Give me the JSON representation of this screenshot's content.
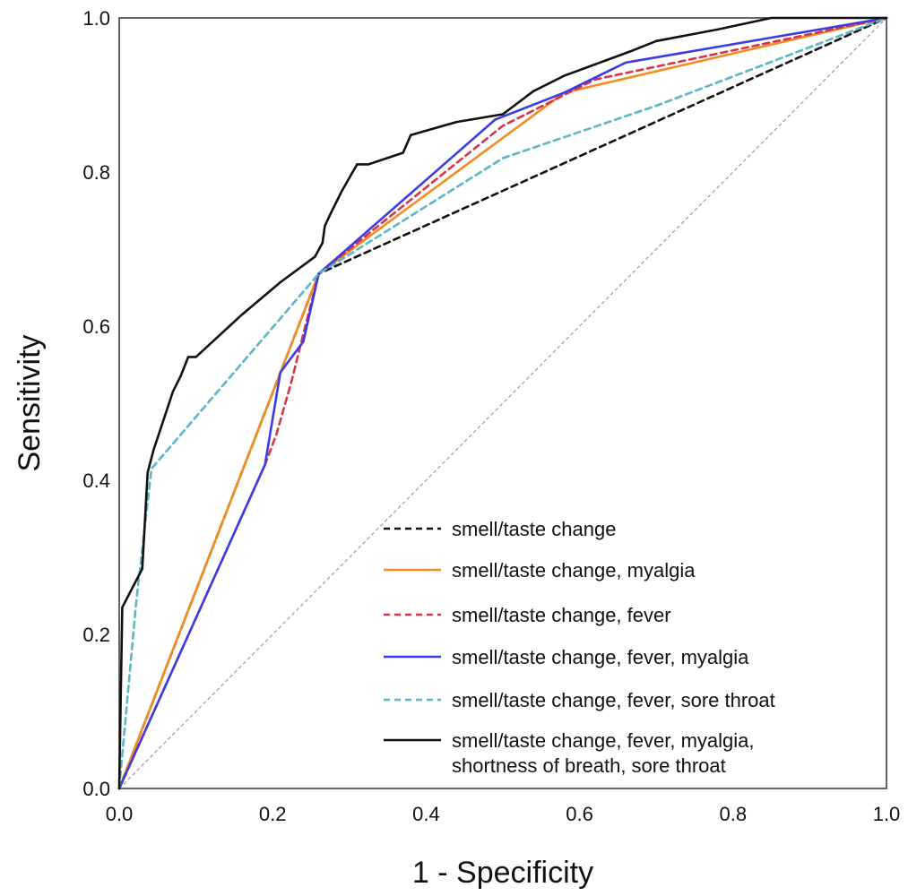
{
  "chart_data": {
    "type": "line",
    "title": "",
    "xlabel": "1 - Specificity",
    "ylabel": "Sensitivity",
    "xlim": [
      0.0,
      1.0
    ],
    "ylim": [
      0.0,
      1.0
    ],
    "x_ticks": [
      "0.0",
      "0.2",
      "0.4",
      "0.6",
      "0.8",
      "1.0"
    ],
    "y_ticks": [
      "0.0",
      "0.2",
      "0.4",
      "0.6",
      "0.8",
      "1.0"
    ],
    "grid": false,
    "legend_position": "bottom-right",
    "reference_line": {
      "x": [
        0,
        1
      ],
      "y": [
        0,
        1
      ],
      "color": "#999999",
      "dash": "dashed"
    },
    "series": [
      {
        "name": "smell/taste change",
        "color": "#111111",
        "dash": "dashed",
        "x": [
          0.0,
          0.26,
          1.0
        ],
        "y": [
          0.0,
          0.668,
          1.0
        ]
      },
      {
        "name": "smell/taste change, myalgia",
        "color": "#f28c1e",
        "dash": "solid",
        "x": [
          0.0,
          0.26,
          0.58,
          1.0
        ],
        "y": [
          0.0,
          0.668,
          0.903,
          1.0
        ]
      },
      {
        "name": "smell/taste change, fever",
        "color": "#d9334a",
        "dash": "dashed",
        "x": [
          0.0,
          0.19,
          0.205,
          0.225,
          0.24,
          0.26,
          0.5,
          0.62,
          1.0
        ],
        "y": [
          0.0,
          0.42,
          0.46,
          0.53,
          0.59,
          0.668,
          0.86,
          0.92,
          1.0
        ]
      },
      {
        "name": "smell/taste change, fever, myalgia",
        "color": "#3b3be6",
        "dash": "solid",
        "x": [
          0.0,
          0.19,
          0.21,
          0.24,
          0.26,
          0.49,
          0.58,
          0.66,
          1.0
        ],
        "y": [
          0.0,
          0.42,
          0.54,
          0.58,
          0.668,
          0.868,
          0.903,
          0.942,
          1.0
        ]
      },
      {
        "name": "smell/taste change, fever, sore throat",
        "color": "#5ab6c8",
        "dash": "dashed",
        "x": [
          0.0,
          0.022,
          0.042,
          0.26,
          0.5,
          0.7,
          1.0
        ],
        "y": [
          0.0,
          0.24,
          0.415,
          0.668,
          0.818,
          0.886,
          1.0
        ]
      },
      {
        "name": "smell/taste change, fever, myalgia, shortness of breath, sore throat",
        "color": "#111111",
        "dash": "solid",
        "x": [
          0.0,
          0.004,
          0.03,
          0.037,
          0.045,
          0.055,
          0.07,
          0.08,
          0.09,
          0.1,
          0.16,
          0.21,
          0.255,
          0.265,
          0.268,
          0.275,
          0.29,
          0.31,
          0.325,
          0.37,
          0.38,
          0.44,
          0.5,
          0.54,
          0.55,
          0.58,
          0.67,
          0.7,
          0.78,
          0.85,
          1.0
        ],
        "y": [
          0.0,
          0.235,
          0.285,
          0.41,
          0.44,
          0.47,
          0.515,
          0.535,
          0.56,
          0.56,
          0.615,
          0.657,
          0.69,
          0.708,
          0.73,
          0.745,
          0.775,
          0.81,
          0.81,
          0.825,
          0.848,
          0.865,
          0.875,
          0.905,
          0.91,
          0.925,
          0.958,
          0.97,
          0.985,
          1.0,
          1.0
        ]
      }
    ]
  }
}
